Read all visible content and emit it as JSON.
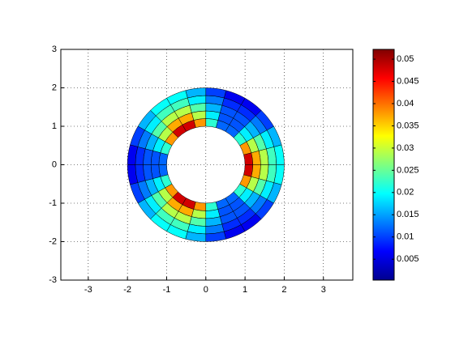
{
  "chart_data": {
    "type": "heatmap",
    "colormap": "jet",
    "grid": true,
    "colorbar": true,
    "xlim": [
      -3.7,
      3.75
    ],
    "ylim": [
      -3,
      3
    ],
    "xticks": [
      -3,
      -2,
      -1,
      0,
      1,
      2,
      3
    ],
    "yticks": [
      -3,
      -2,
      -1,
      0,
      1,
      2,
      3
    ],
    "r": [
      1,
      1.2,
      1.4,
      1.6,
      1.8,
      2
    ],
    "theta": [
      0,
      15,
      30,
      45,
      60,
      75,
      90,
      105,
      120,
      135,
      150,
      165,
      180,
      195,
      210,
      225,
      240,
      255,
      270,
      285,
      300,
      315,
      330,
      345,
      360
    ],
    "values": [
      [
        0.048,
        0.038,
        0.022,
        0.012,
        0.012,
        0.022,
        0.038,
        0.048,
        0.048,
        0.038,
        0.022,
        0.012,
        0.012,
        0.022,
        0.038,
        0.048,
        0.048,
        0.038,
        0.022,
        0.012,
        0.012,
        0.022,
        0.038,
        0.048
      ],
      [
        0.037,
        0.029,
        0.019,
        0.011,
        0.011,
        0.019,
        0.029,
        0.037,
        0.037,
        0.029,
        0.019,
        0.011,
        0.011,
        0.019,
        0.029,
        0.037,
        0.037,
        0.029,
        0.019,
        0.011,
        0.011,
        0.019,
        0.029,
        0.037
      ],
      [
        0.029,
        0.024,
        0.016,
        0.011,
        0.011,
        0.016,
        0.024,
        0.029,
        0.029,
        0.024,
        0.016,
        0.011,
        0.011,
        0.016,
        0.024,
        0.029,
        0.029,
        0.024,
        0.016,
        0.011,
        0.011,
        0.016,
        0.024,
        0.029
      ],
      [
        0.023,
        0.019,
        0.013,
        0.009,
        0.009,
        0.013,
        0.019,
        0.023,
        0.023,
        0.019,
        0.013,
        0.009,
        0.009,
        0.013,
        0.019,
        0.023,
        0.023,
        0.019,
        0.013,
        0.009,
        0.009,
        0.013,
        0.019,
        0.023
      ],
      [
        0.02,
        0.016,
        0.01,
        0.006,
        0.006,
        0.01,
        0.016,
        0.02,
        0.02,
        0.016,
        0.01,
        0.006,
        0.006,
        0.01,
        0.016,
        0.02,
        0.02,
        0.016,
        0.01,
        0.006,
        0.006,
        0.01,
        0.016,
        0.02
      ]
    ],
    "clim": [
      0.0003,
      0.0522
    ],
    "colorbar_ticks": [
      0.005,
      0.01,
      0.015,
      0.02,
      0.025,
      0.03,
      0.035,
      0.04,
      0.045,
      0.05
    ]
  }
}
